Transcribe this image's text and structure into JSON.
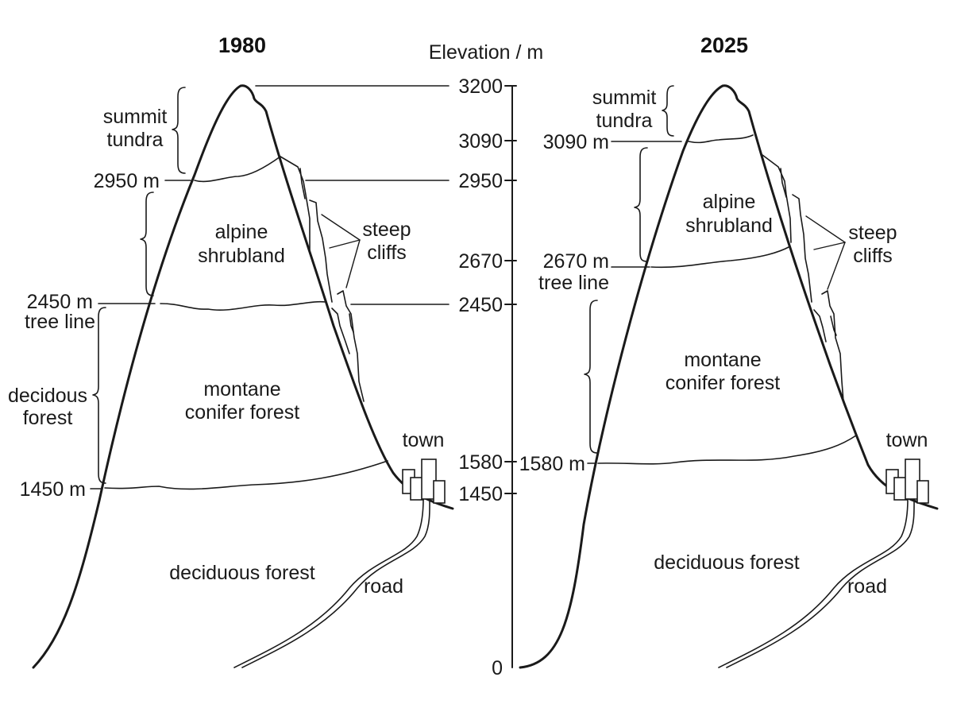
{
  "axis": {
    "title": "Elevation / m",
    "ticks": [
      "3200",
      "3090",
      "2950",
      "2670",
      "2450",
      "1580",
      "1450",
      "0"
    ]
  },
  "left_panel": {
    "year": "1980",
    "zones": {
      "summit": [
        "summit",
        "tundra"
      ],
      "alpine": [
        "alpine",
        "shrubland"
      ],
      "conifer": [
        "montane",
        "conifer forest"
      ],
      "deciduous": "deciduous forest"
    },
    "elevation_labels": {
      "tundra_lower": "2950 m",
      "tree_line": "2450 m",
      "tree_line_name": "tree line",
      "deciduous_upper": "1450 m"
    },
    "bracket_label": [
      "decidous",
      "forest"
    ],
    "cliffs_label": [
      "steep",
      "cliffs"
    ],
    "town_label": "town",
    "road_label": "road"
  },
  "right_panel": {
    "year": "2025",
    "zones": {
      "summit": [
        "summit",
        "tundra"
      ],
      "alpine": [
        "alpine",
        "shrubland"
      ],
      "conifer": [
        "montane",
        "conifer forest"
      ],
      "deciduous": "deciduous forest"
    },
    "elevation_labels": {
      "tundra_lower": "3090 m",
      "tree_line": "2670 m",
      "tree_line_name": "tree line",
      "deciduous_upper": "1580 m"
    },
    "cliffs_label": [
      "steep",
      "cliffs"
    ],
    "town_label": "town",
    "road_label": "road"
  }
}
